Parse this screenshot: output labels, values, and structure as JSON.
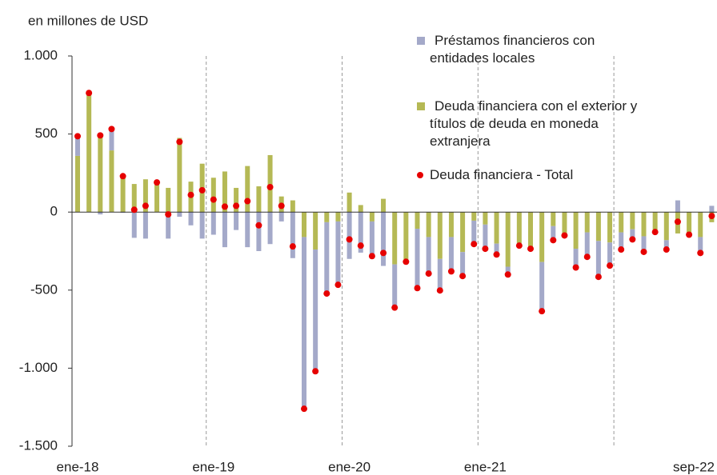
{
  "chart_data": {
    "type": "bar",
    "y_axis_label": "en millones de USD",
    "categories": [
      "ene-18",
      null,
      null,
      null,
      null,
      null,
      null,
      null,
      null,
      null,
      null,
      null,
      "ene-19",
      null,
      null,
      null,
      null,
      null,
      null,
      null,
      null,
      null,
      null,
      null,
      "ene-20",
      null,
      null,
      null,
      null,
      null,
      null,
      null,
      null,
      null,
      null,
      null,
      "ene-21",
      null,
      null,
      null,
      null,
      null,
      null,
      null,
      null,
      null,
      null,
      null,
      null,
      null,
      null,
      null,
      null,
      null,
      null,
      null,
      "sep-22"
    ],
    "series": [
      {
        "name": "Préstamos financieros con entidades locales",
        "type": "bar",
        "color": "#a4a9c9",
        "values": [
          125,
          10,
          -15,
          140,
          -5,
          -165,
          -170,
          10,
          -170,
          -30,
          -85,
          -170,
          -145,
          -225,
          -115,
          -225,
          -250,
          -205,
          -60,
          -295,
          -1100,
          -780,
          -457,
          -406,
          -300,
          -260,
          -222,
          -345,
          -277,
          -10,
          -380,
          -234,
          -202,
          -220,
          -154,
          -150,
          -155,
          -70,
          -50,
          -15,
          -10,
          -315,
          -90,
          -10,
          -120,
          -157,
          -230,
          -148,
          -110,
          -65,
          -100,
          -8,
          -60,
          75,
          -5,
          -102,
          40
        ]
      },
      {
        "name": "Deuda financiera con el exterior y títulos de deuda en moneda extranjera",
        "type": "bar",
        "color": "#b5b955",
        "values": [
          360,
          753,
          505,
          395,
          235,
          180,
          210,
          180,
          155,
          475,
          195,
          310,
          220,
          260,
          155,
          295,
          165,
          365,
          100,
          75,
          -160,
          -240,
          -65,
          -60,
          125,
          45,
          -60,
          85,
          -335,
          -308,
          -107,
          -160,
          -300,
          -160,
          -256,
          -55,
          -80,
          -202,
          -350,
          -200,
          -225,
          -320,
          -90,
          -140,
          -235,
          -130,
          -185,
          -195,
          -130,
          -110,
          -155,
          -120,
          -180,
          -137,
          -140,
          -160,
          -65
        ]
      },
      {
        "name": "Deuda financiera - Total",
        "type": "dot",
        "color": "#e60000",
        "values": [
          486,
          763,
          491,
          532,
          230,
          15,
          40,
          190,
          -15,
          450,
          110,
          140,
          80,
          35,
          40,
          70,
          -85,
          160,
          40,
          -220,
          -1260,
          -1020,
          -522,
          -466,
          -175,
          -215,
          -282,
          -262,
          -612,
          -318,
          -487,
          -394,
          -502,
          -380,
          -410,
          -205,
          -235,
          -272,
          -400,
          -215,
          -235,
          -635,
          -180,
          -150,
          -355,
          -287,
          -415,
          -343,
          -240,
          -175,
          -255,
          -128,
          -240,
          -62,
          -145,
          -262,
          -25
        ]
      }
    ],
    "ylim": [
      -1500,
      1000
    ],
    "yticks": [
      {
        "value": -1500,
        "label": "-1.500"
      },
      {
        "value": -1000,
        "label": "-1.000"
      },
      -500,
      0,
      500,
      {
        "value": 1000,
        "label": "1.000"
      }
    ]
  }
}
